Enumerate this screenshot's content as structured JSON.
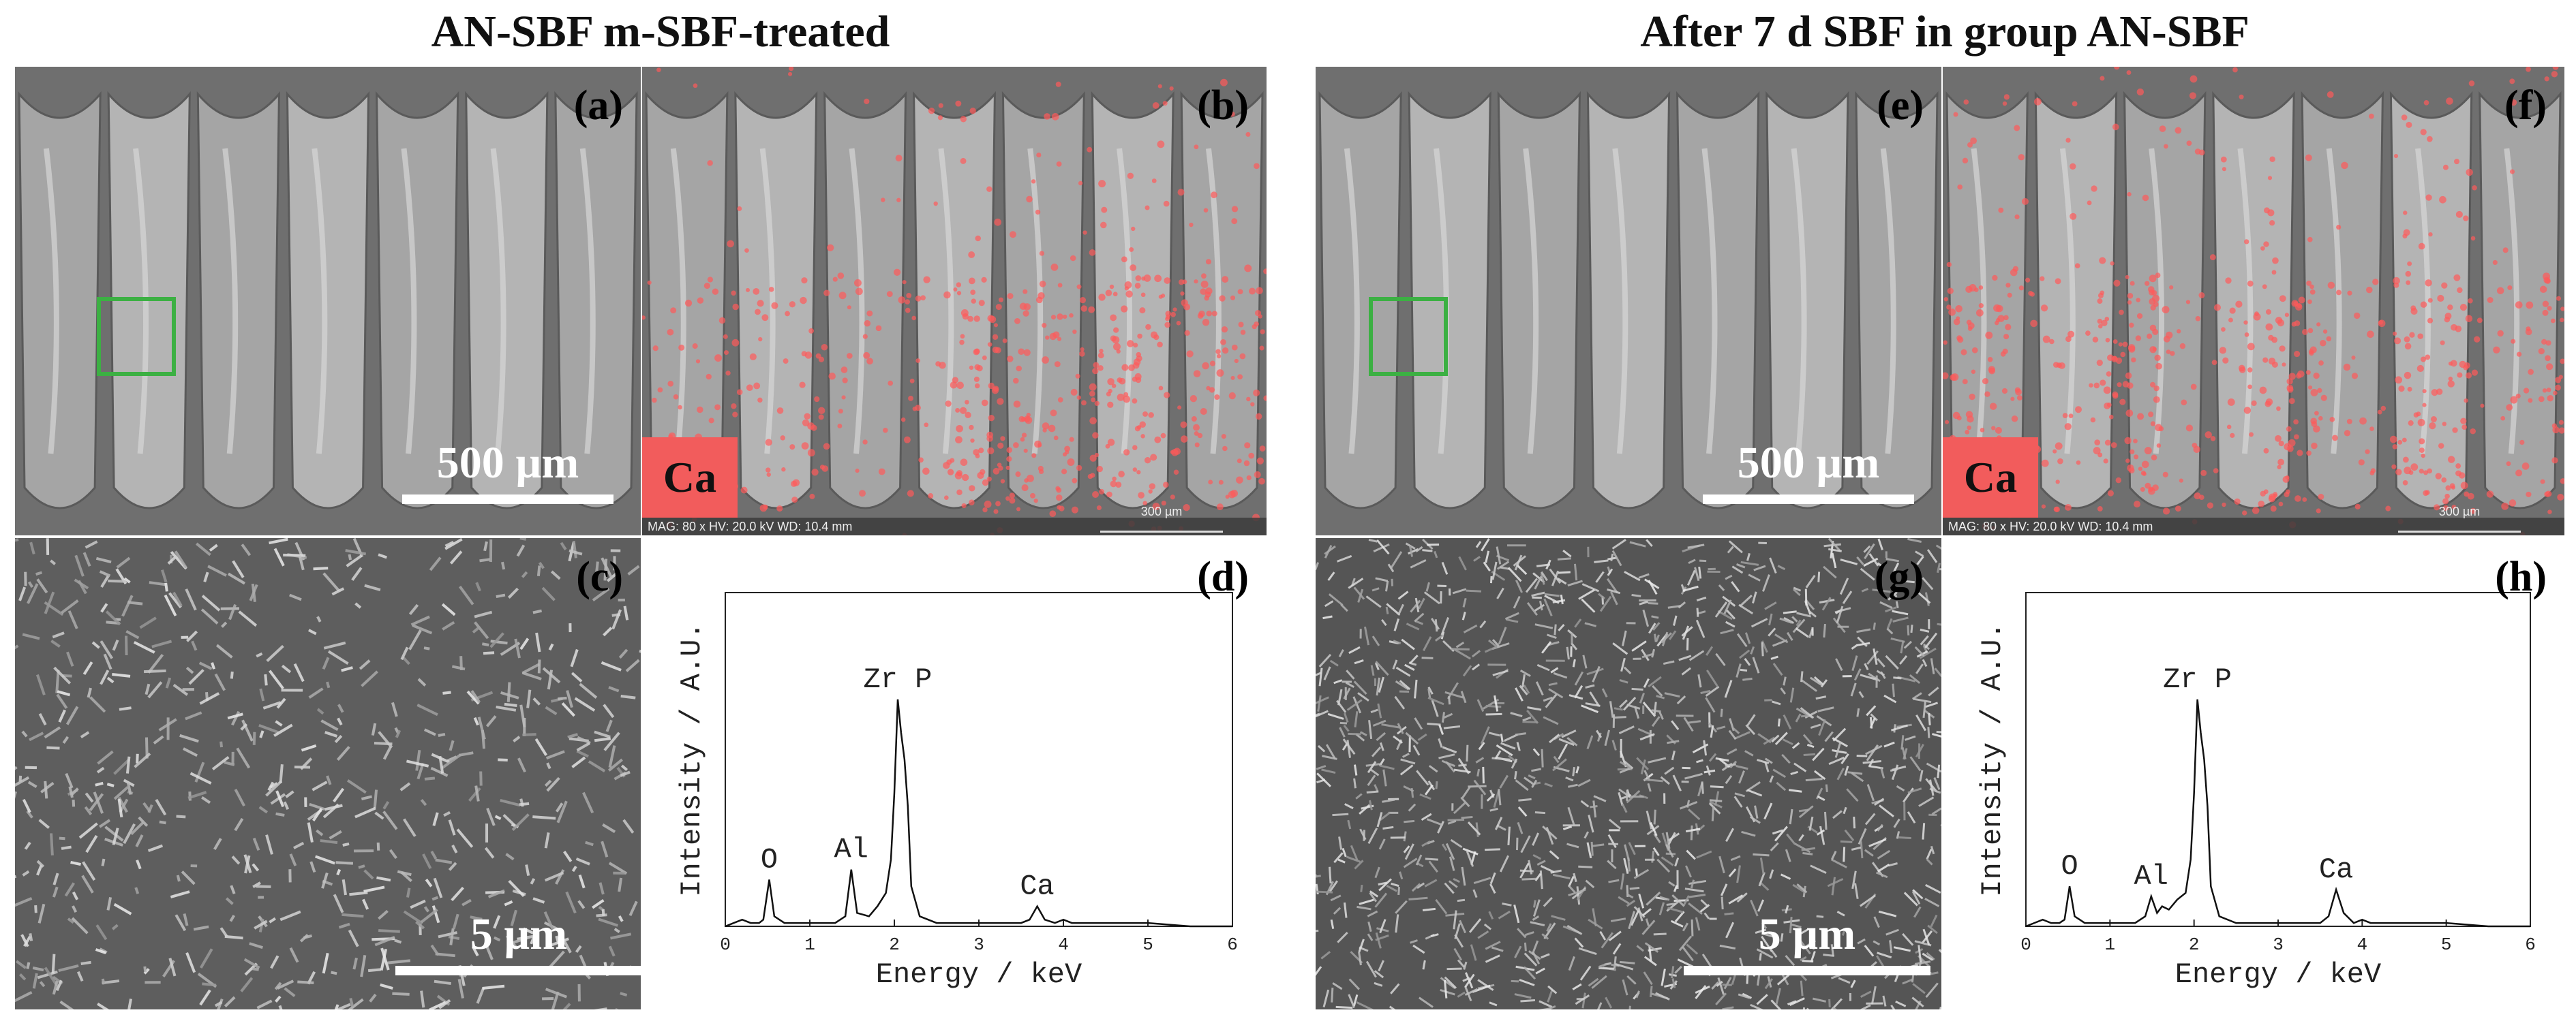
{
  "headings": {
    "left": "AN-SBF m-SBF-treated",
    "right": "After 7 d SBF in group AN-SBF"
  },
  "panels": {
    "a": {
      "label": "(a)",
      "scale": "500 µm"
    },
    "b": {
      "label": "(b)",
      "badge": "Ca",
      "meta": "MAG: 80 x  HV: 20.0 kV  WD: 10.4 mm",
      "mini_scale": "300 µm"
    },
    "c": {
      "label": "(c)",
      "scale": "5 µm"
    },
    "d": {
      "label": "(d)"
    },
    "e": {
      "label": "(e)",
      "scale": "500 µm"
    },
    "f": {
      "label": "(f)",
      "badge": "Ca",
      "meta": "MAG: 80 x  HV: 20.0 kV  WD: 10.4 mm",
      "mini_scale": "300 µm"
    },
    "g": {
      "label": "(g)",
      "scale": "5 µm"
    },
    "h": {
      "label": "(h)"
    }
  },
  "chart_data": [
    {
      "type": "line",
      "panel": "d",
      "xlabel": "Energy / keV",
      "ylabel": "Intensity / A.U.",
      "xlim": [
        0,
        6
      ],
      "ylim": [
        0,
        1
      ],
      "xticks": [
        0,
        1,
        2,
        3,
        4,
        5,
        6
      ],
      "peaks": [
        {
          "name": "O",
          "x": 0.52,
          "y": 0.14
        },
        {
          "name": "Al",
          "x": 1.49,
          "y": 0.17
        },
        {
          "name": "Zr  P",
          "x": 2.04,
          "y": 0.68
        },
        {
          "name": "Ca",
          "x": 3.69,
          "y": 0.06
        }
      ],
      "series": [
        {
          "x": [
            0,
            0.1,
            0.2,
            0.3,
            0.4,
            0.45,
            0.52,
            0.58,
            0.7,
            0.9,
            1.1,
            1.3,
            1.42,
            1.49,
            1.56,
            1.7,
            1.8,
            1.9,
            1.96,
            2.0,
            2.04,
            2.08,
            2.12,
            2.16,
            2.2,
            2.3,
            2.5,
            3.0,
            3.5,
            3.6,
            3.69,
            3.78,
            3.9,
            4.0,
            4.1,
            4.5,
            5.0,
            5.5,
            6.0
          ],
          "y": [
            0.0,
            0.01,
            0.02,
            0.01,
            0.01,
            0.02,
            0.14,
            0.03,
            0.01,
            0.01,
            0.01,
            0.01,
            0.03,
            0.17,
            0.04,
            0.03,
            0.06,
            0.1,
            0.2,
            0.4,
            0.68,
            0.58,
            0.5,
            0.36,
            0.12,
            0.03,
            0.01,
            0.01,
            0.01,
            0.02,
            0.06,
            0.02,
            0.01,
            0.02,
            0.01,
            0.01,
            0.01,
            0.0,
            0.0
          ]
        }
      ]
    },
    {
      "type": "line",
      "panel": "h",
      "xlabel": "Energy / keV",
      "ylabel": "Intensity / A.U.",
      "xlim": [
        0,
        6
      ],
      "ylim": [
        0,
        1
      ],
      "xticks": [
        0,
        1,
        2,
        3,
        4,
        5,
        6
      ],
      "peaks": [
        {
          "name": "O",
          "x": 0.52,
          "y": 0.12
        },
        {
          "name": "Al",
          "x": 1.49,
          "y": 0.09
        },
        {
          "name": "Zr  P",
          "x": 2.04,
          "y": 0.68
        },
        {
          "name": "Ca",
          "x": 3.69,
          "y": 0.11
        }
      ],
      "series": [
        {
          "x": [
            0,
            0.1,
            0.2,
            0.3,
            0.4,
            0.46,
            0.52,
            0.58,
            0.7,
            0.9,
            1.1,
            1.3,
            1.42,
            1.49,
            1.56,
            1.62,
            1.7,
            1.8,
            1.9,
            1.96,
            2.0,
            2.04,
            2.08,
            2.12,
            2.16,
            2.2,
            2.3,
            2.5,
            3.0,
            3.5,
            3.6,
            3.69,
            3.78,
            3.9,
            4.0,
            4.1,
            4.5,
            5.0,
            5.5,
            6.0
          ],
          "y": [
            0.0,
            0.01,
            0.02,
            0.01,
            0.01,
            0.02,
            0.12,
            0.03,
            0.01,
            0.01,
            0.01,
            0.01,
            0.03,
            0.09,
            0.04,
            0.06,
            0.05,
            0.08,
            0.1,
            0.2,
            0.4,
            0.68,
            0.58,
            0.5,
            0.36,
            0.12,
            0.03,
            0.01,
            0.01,
            0.01,
            0.03,
            0.11,
            0.04,
            0.01,
            0.02,
            0.01,
            0.01,
            0.01,
            0.0,
            0.0
          ]
        }
      ]
    }
  ]
}
